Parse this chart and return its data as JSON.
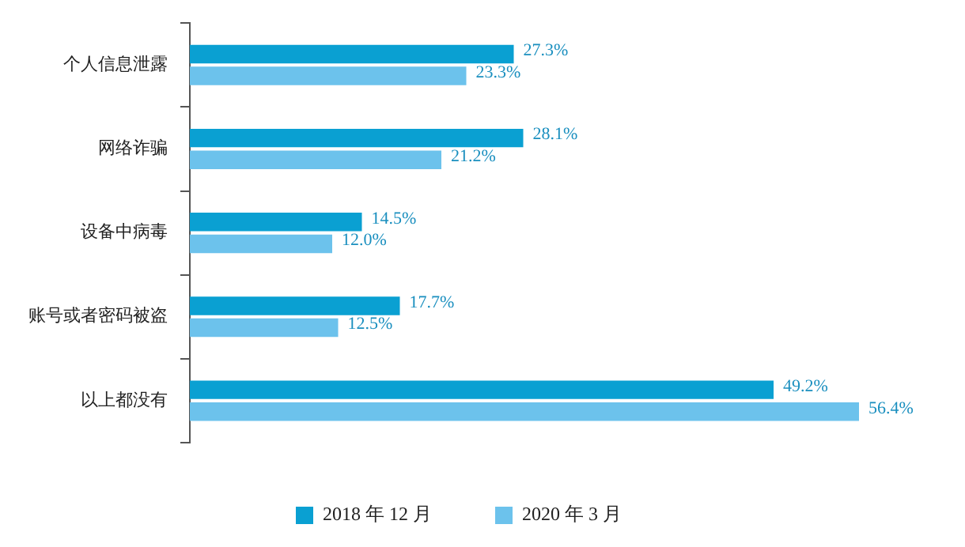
{
  "chart_data": {
    "type": "bar",
    "orientation": "horizontal",
    "categories": [
      "个人信息泄露",
      "网络诈骗",
      "设备中病毒",
      "账号或者密码被盗",
      "以上都没有"
    ],
    "series": [
      {
        "name": "2018 年 12 月",
        "color": "#0aa0d2",
        "values": [
          27.3,
          28.1,
          14.5,
          17.7,
          49.2
        ],
        "value_labels": [
          "27.3%",
          "28.1%",
          "14.5%",
          "17.7%",
          "49.2%"
        ]
      },
      {
        "name": "2020 年 3 月",
        "color": "#6cc2ec",
        "values": [
          23.3,
          21.2,
          12.0,
          12.5,
          56.4
        ],
        "value_labels": [
          "23.3%",
          "21.2%",
          "12.0%",
          "12.5%",
          "56.4%"
        ]
      }
    ],
    "tick_labels": "y",
    "legend": "bottom"
  }
}
